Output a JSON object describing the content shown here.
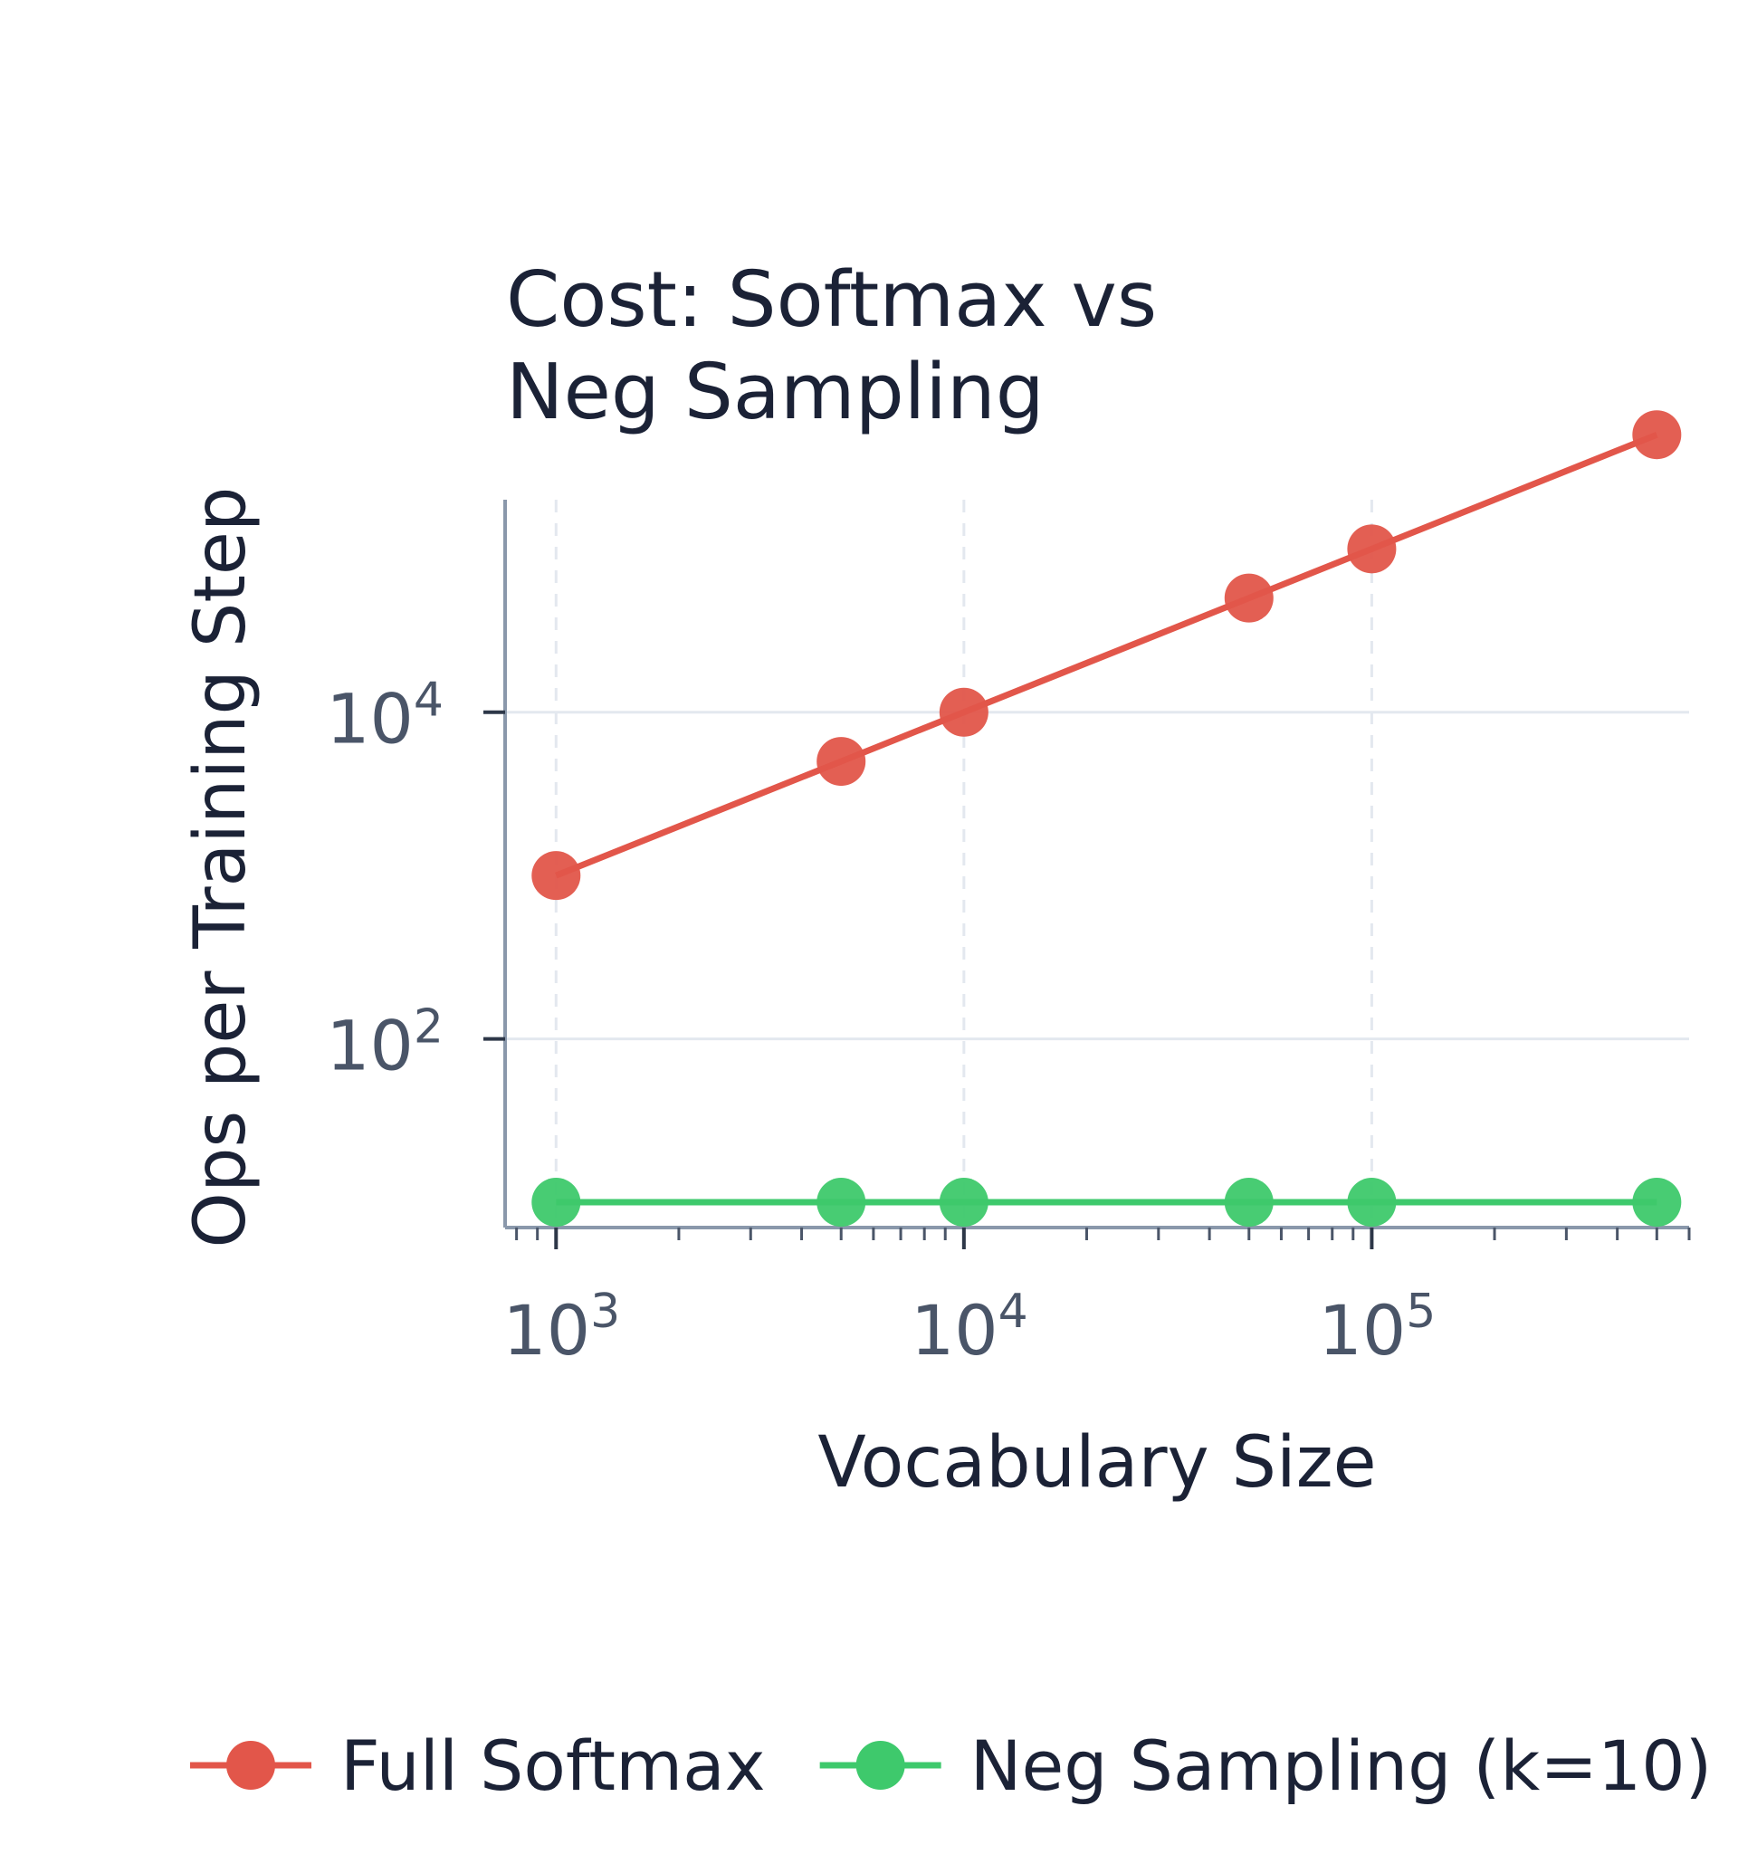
{
  "chart_data": {
    "type": "line",
    "title_lines": [
      "Cost: Softmax vs",
      "Neg Sampling"
    ],
    "xlabel": "Vocabulary Size",
    "ylabel": "Ops per Training Step",
    "x_scale": "log",
    "y_scale": "log",
    "xlim": [
      750,
      600000
    ],
    "ylim": [
      7,
      200000
    ],
    "x": [
      1000,
      5000,
      10000,
      50000,
      100000,
      500000
    ],
    "x_ticks": [
      {
        "value": 1000,
        "base": "10",
        "exp": "3"
      },
      {
        "value": 10000,
        "base": "10",
        "exp": "4"
      },
      {
        "value": 100000,
        "base": "10",
        "exp": "5"
      }
    ],
    "y_ticks": [
      {
        "value": 100,
        "base": "10",
        "exp": "2"
      },
      {
        "value": 10000,
        "base": "10",
        "exp": "4"
      }
    ],
    "series": [
      {
        "name": "Full Softmax",
        "color": "#e2564a",
        "values": [
          1000,
          5000,
          10000,
          50000,
          100000,
          500000
        ]
      },
      {
        "name": "Neg Sampling (k=10)",
        "color": "#3ec96c",
        "values": [
          10,
          10,
          10,
          10,
          10,
          10
        ]
      }
    ],
    "grid": true,
    "legend_position": "bottom"
  }
}
